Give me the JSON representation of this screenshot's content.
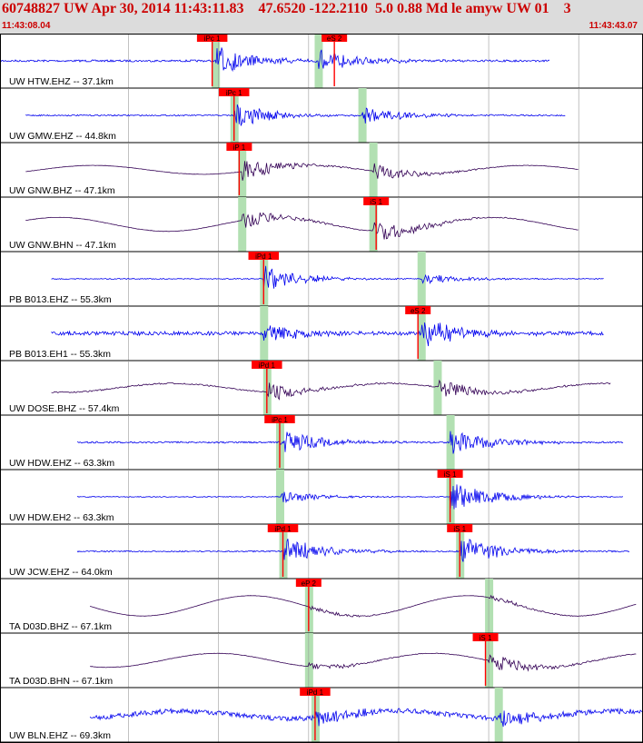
{
  "header": {
    "title": "60748827 UW Apr 30, 2014 11:43:11.83    47.6520 -122.2110  5.0 0.88 Md le amyw UW 01    3",
    "start_time": "11:43:08.04",
    "end_time": "11:43:43.07"
  },
  "colors": {
    "header_bg": "#dcdcdc",
    "header_text": "#cc0000",
    "trace_blue": "#0000ee",
    "trace_dark": "#330055",
    "pick": "#ff0000",
    "window_bar": "#b2e0b2",
    "grid": "#9a9a9a"
  },
  "traces": [
    {
      "label": "UW HTW.EHZ -- 37.1km",
      "style": "blue",
      "picks": [
        {
          "label": "iPc 1",
          "t": 0.33
        },
        {
          "label": "eS 2",
          "t": 0.52
        }
      ],
      "green": [
        0.335,
        0.495
      ],
      "extent": [
        0.0,
        0.855
      ],
      "noise": 0.18,
      "wave": 0,
      "burst1": 0.9,
      "burst2": 0.7
    },
    {
      "label": "UW GMW.EHZ -- 44.8km",
      "style": "blue",
      "picks": [
        {
          "label": "iPc 1",
          "t": 0.364
        }
      ],
      "green": [
        0.364,
        0.563
      ],
      "extent": [
        0.04,
        0.88
      ],
      "noise": 0.12,
      "wave": 0,
      "burst1": 0.8,
      "burst2": 0.6
    },
    {
      "label": "UW GNW.BHZ -- 47.1km",
      "style": "dark",
      "picks": [
        {
          "label": "iP 1",
          "t": 0.372
        }
      ],
      "green": [
        0.376,
        0.58
      ],
      "extent": [
        0.04,
        0.9
      ],
      "noise": 0.03,
      "wave": 0.35,
      "burst1": 0.7,
      "burst2": 0.5
    },
    {
      "label": "UW GNW.BHN -- 47.1km",
      "style": "dark",
      "picks": [
        {
          "label": "iS 1",
          "t": 0.585
        }
      ],
      "green": [
        0.376,
        0.58
      ],
      "extent": [
        0.04,
        0.9
      ],
      "noise": 0.03,
      "wave": 0.55,
      "burst1": 0.6,
      "burst2": 0.7
    },
    {
      "label": "PB B013.EHZ -- 55.3km",
      "style": "blue",
      "picks": [
        {
          "label": "iPd 1",
          "t": 0.41
        }
      ],
      "green": [
        0.41,
        0.655
      ],
      "extent": [
        0.08,
        0.94
      ],
      "noise": 0.08,
      "wave": 0,
      "burst1": 0.85,
      "burst2": 0.35
    },
    {
      "label": "PB B013.EH1 -- 55.3km",
      "style": "blue",
      "picks": [
        {
          "label": "eS 2",
          "t": 0.65
        }
      ],
      "green": [
        0.41,
        0.655
      ],
      "extent": [
        0.08,
        0.94
      ],
      "noise": 0.35,
      "wave": 0,
      "burst1": 0.6,
      "burst2": 0.9
    },
    {
      "label": "UW DOSE.BHZ -- 57.4km",
      "style": "dark",
      "picks": [
        {
          "label": "iPd 1",
          "t": 0.415
        }
      ],
      "green": [
        0.415,
        0.68
      ],
      "extent": [
        0.08,
        0.95
      ],
      "noise": 0.12,
      "wave": 0.35,
      "burst1": 0.6,
      "burst2": 0.6
    },
    {
      "label": "UW HDW.EHZ -- 63.3km",
      "style": "blue",
      "picks": [
        {
          "label": "iPc 1",
          "t": 0.435
        }
      ],
      "green": [
        0.435,
        0.7
      ],
      "extent": [
        0.12,
        0.97
      ],
      "noise": 0.15,
      "wave": 0,
      "burst1": 0.9,
      "burst2": 0.8
    },
    {
      "label": "UW HDW.EH2 -- 63.3km",
      "style": "blue",
      "picks": [
        {
          "label": "iS 1",
          "t": 0.7
        }
      ],
      "green": [
        0.435,
        0.7
      ],
      "extent": [
        0.12,
        0.97
      ],
      "noise": 0.08,
      "wave": 0,
      "burst1": 0.4,
      "burst2": 0.95
    },
    {
      "label": "UW JCW.EHZ -- 64.0km",
      "style": "blue",
      "picks": [
        {
          "label": "iPd 1",
          "t": 0.44
        },
        {
          "label": "iS 1",
          "t": 0.715
        }
      ],
      "green": [
        0.44,
        0.715
      ],
      "extent": [
        0.12,
        0.98
      ],
      "noise": 0.12,
      "wave": 0,
      "burst1": 0.95,
      "burst2": 0.9
    },
    {
      "label": "TA D03D.BHZ -- 67.1km",
      "style": "dark",
      "picks": [
        {
          "label": "eP 2",
          "t": 0.48
        }
      ],
      "green": [
        0.48,
        0.76
      ],
      "extent": [
        0.14,
        0.99
      ],
      "noise": 0.02,
      "wave": 0.8,
      "burst1": 0.2,
      "burst2": 0.2
    },
    {
      "label": "TA D03D.BHN -- 67.1km",
      "style": "dark",
      "picks": [
        {
          "label": "iS 1",
          "t": 0.755
        }
      ],
      "green": [
        0.48,
        0.76
      ],
      "extent": [
        0.14,
        0.99
      ],
      "noise": 0.04,
      "wave": 0.55,
      "burst1": 0.3,
      "burst2": 0.6
    },
    {
      "label": "UW BLN.EHZ -- 69.3km",
      "style": "blue",
      "picks": [
        {
          "label": "iPd 1",
          "t": 0.49
        }
      ],
      "green": [
        0.49,
        0.775
      ],
      "extent": [
        0.14,
        1.0
      ],
      "noise": 0.45,
      "wave": 0.3,
      "burst1": 0.5,
      "burst2": 0.5
    }
  ],
  "gridlines": [
    0.2,
    0.34,
    0.48,
    0.62,
    0.76,
    0.9
  ]
}
